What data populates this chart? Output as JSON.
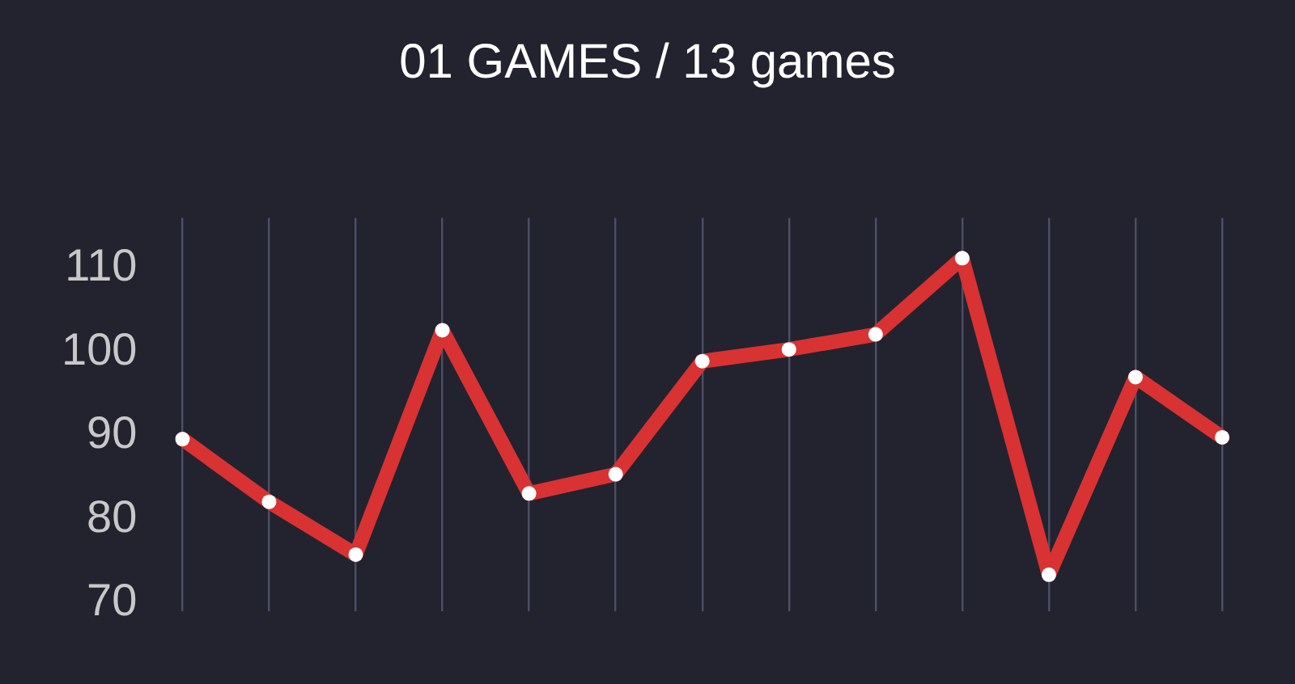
{
  "chart_data": {
    "type": "line",
    "title": "01 GAMES / 13 games",
    "categories": [
      null,
      null,
      null,
      null,
      null,
      null,
      null,
      null,
      null,
      null,
      null,
      null,
      null
    ],
    "series": [
      {
        "color": "#d83232",
        "values": [
          89.6,
          82.1,
          75.8,
          102.6,
          83.1,
          85.4,
          98.9,
          100.3,
          102.1,
          111.2,
          73.4,
          97.0,
          89.8
        ]
      }
    ],
    "ylim": [
      69,
      116
    ],
    "yticks": [
      70,
      80,
      90,
      100,
      110
    ],
    "grid": "x",
    "legend": false,
    "marker": "circle",
    "line_style": "solid",
    "tick_labels": "y"
  }
}
